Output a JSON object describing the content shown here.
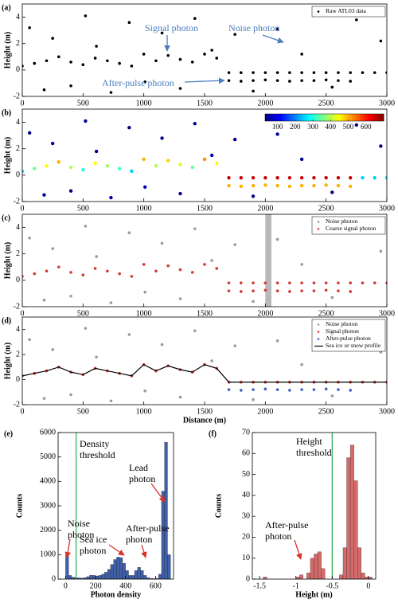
{
  "chart_data": [
    {
      "type": "scatter",
      "label": "(a)",
      "y_label": "Height (m)",
      "xlim": [
        0,
        3000
      ],
      "ylim": [
        -2,
        5
      ],
      "xticks": [
        0,
        500,
        1000,
        1500,
        2000,
        2500,
        3000
      ],
      "yticks": [
        -2,
        0,
        2,
        4
      ],
      "legend": "upper right",
      "series": [
        {
          "name": "Raw ATL03 data",
          "color": "#000000",
          "x": [
            0,
            100,
            200,
            300,
            400,
            500,
            600,
            700,
            800,
            900,
            1000,
            1100,
            1200,
            1300,
            1400,
            1500,
            1600,
            1700,
            1800,
            1900,
            2000,
            2100,
            2200,
            2300,
            2400,
            2500,
            2600,
            2700,
            2800,
            2900,
            3000,
            60,
            180,
            250,
            400,
            520,
            610,
            730,
            880,
            1010,
            1150,
            1300,
            1420,
            1560,
            1750,
            1900,
            2100,
            2300,
            2550,
            2750,
            2950,
            1700,
            1800,
            1900,
            2000,
            2100,
            2200,
            2300,
            2400,
            2500,
            2600,
            2700
          ],
          "values": [
            0.3,
            0.5,
            0.7,
            1,
            0.6,
            0.4,
            0.9,
            0.7,
            0.5,
            0.3,
            1.2,
            0.7,
            1.1,
            0.8,
            0.6,
            1.2,
            0.9,
            -0.2,
            -0.2,
            -0.2,
            -0.2,
            -0.2,
            -0.2,
            -0.2,
            -0.2,
            -0.2,
            -0.2,
            -0.2,
            -0.2,
            -0.2,
            -0.2,
            3.2,
            -1.5,
            2.4,
            -1.2,
            4.1,
            1.8,
            -1.7,
            3.6,
            -0.9,
            2.8,
            -1.4,
            3.9,
            1.5,
            2.7,
            -1.6,
            3.1,
            1.2,
            -1.3,
            3.8,
            2.2,
            -0.8,
            -0.85,
            -0.8,
            -0.75,
            -0.8,
            -0.85,
            -0.8,
            -0.8,
            -0.75,
            -0.8,
            -0.85
          ]
        }
      ],
      "annotations": [
        "Signal photon",
        "Noise photon",
        "After-pulse photon"
      ],
      "annotation_color": "#4a7cc0"
    },
    {
      "type": "density-scatter",
      "label": "(b)",
      "y_label": "Height (m)",
      "xlim": [
        0,
        3000
      ],
      "ylim": [
        -2,
        5
      ],
      "xticks": [
        0,
        500,
        1000,
        1500,
        2000,
        2500,
        3000
      ],
      "yticks": [
        -2,
        0,
        2,
        4
      ],
      "x": [
        0,
        100,
        200,
        300,
        400,
        500,
        600,
        700,
        800,
        900,
        1000,
        1100,
        1200,
        1300,
        1400,
        1500,
        1600,
        1700,
        1800,
        1900,
        2000,
        2100,
        2200,
        2300,
        2400,
        2500,
        2600,
        2700,
        2800,
        2900,
        3000,
        60,
        180,
        250,
        400,
        520,
        610,
        730,
        880,
        1010,
        1150,
        1300,
        1420,
        1560,
        1750,
        1900,
        2100,
        2300,
        2550,
        2750,
        2950,
        1700,
        1800,
        1900,
        2000,
        2100,
        2200,
        2300,
        2400,
        2500,
        2600,
        2700
      ],
      "values": [
        0.3,
        0.5,
        0.7,
        1,
        0.6,
        0.4,
        0.9,
        0.7,
        0.5,
        0.3,
        1.2,
        0.7,
        1.1,
        0.8,
        0.6,
        1.2,
        0.9,
        -0.2,
        -0.2,
        -0.2,
        -0.2,
        -0.2,
        -0.2,
        -0.2,
        -0.2,
        -0.2,
        -0.2,
        -0.2,
        -0.2,
        -0.2,
        -0.2,
        3.2,
        -1.5,
        2.4,
        -1.2,
        4.1,
        1.8,
        -1.7,
        3.6,
        -0.9,
        2.8,
        -1.4,
        3.9,
        1.5,
        2.7,
        -1.6,
        3.1,
        1.2,
        -1.3,
        3.8,
        2.2,
        -0.8,
        -0.85,
        -0.8,
        -0.75,
        -0.8,
        -0.85,
        -0.8,
        -0.8,
        -0.75,
        -0.8,
        -0.85
      ],
      "density": [
        250,
        350,
        450,
        500,
        400,
        300,
        450,
        380,
        320,
        250,
        500,
        400,
        480,
        420,
        350,
        520,
        450,
        650,
        650,
        650,
        650,
        650,
        650,
        650,
        650,
        650,
        650,
        650,
        250,
        250,
        250,
        30,
        45,
        60,
        35,
        50,
        40,
        55,
        30,
        70,
        45,
        35,
        50,
        60,
        40,
        30,
        55,
        45,
        35,
        50,
        40,
        500,
        500,
        500,
        500,
        500,
        500,
        500,
        500,
        500,
        500,
        500
      ],
      "clim": [
        30,
        700
      ],
      "colorbar_ticks": [
        100,
        200,
        300,
        400,
        500,
        600
      ],
      "colormap": "jet"
    },
    {
      "type": "scatter",
      "label": "(c)",
      "y_label": "Height (m)",
      "xlim": [
        0,
        3000
      ],
      "ylim": [
        -2,
        5
      ],
      "xticks": [
        0,
        500,
        1000,
        1500,
        2000,
        2500,
        3000
      ],
      "yticks": [
        -2,
        0,
        2,
        4
      ],
      "legend": "upper right",
      "highlight": [
        2000,
        2050
      ],
      "highlight_color": "#b8b8b8",
      "series": [
        {
          "name": "Noise photon",
          "color": "#9a9a9a",
          "x": [
            60,
            180,
            250,
            400,
            520,
            610,
            730,
            880,
            1010,
            1150,
            1300,
            1420,
            1560,
            1750,
            1900,
            2100,
            2300,
            2550,
            2750,
            2950
          ],
          "values": [
            3.2,
            -1.5,
            2.4,
            -1.2,
            4.1,
            1.8,
            -1.7,
            3.6,
            -0.9,
            2.8,
            -1.4,
            3.9,
            1.5,
            2.7,
            -1.6,
            3.1,
            1.2,
            -1.3,
            3.8,
            2.2
          ]
        },
        {
          "name": "Coarse signal photon",
          "color": "#d03a32",
          "x": [
            0,
            100,
            200,
            300,
            400,
            500,
            600,
            700,
            800,
            900,
            1000,
            1100,
            1200,
            1300,
            1400,
            1500,
            1600,
            1700,
            1800,
            1900,
            2000,
            2100,
            2200,
            2300,
            2400,
            2500,
            2600,
            2700,
            2800,
            2900,
            3000,
            1700,
            1800,
            1900,
            2000,
            2100,
            2200,
            2300,
            2400,
            2500,
            2600,
            2700
          ],
          "values": [
            0.3,
            0.5,
            0.7,
            1,
            0.6,
            0.4,
            0.9,
            0.7,
            0.5,
            0.3,
            1.2,
            0.7,
            1.1,
            0.8,
            0.6,
            1.2,
            0.9,
            -0.2,
            -0.2,
            -0.2,
            -0.2,
            -0.2,
            -0.2,
            -0.2,
            -0.2,
            -0.2,
            -0.2,
            -0.2,
            -0.2,
            -0.2,
            -0.2,
            -0.8,
            -0.85,
            -0.8,
            -0.75,
            -0.8,
            -0.85,
            -0.8,
            -0.8,
            -0.75,
            -0.8,
            -0.85
          ]
        }
      ]
    },
    {
      "type": "scatter",
      "label": "(d)",
      "y_label": "Height (m)",
      "x_label": "Distance (m)",
      "xlim": [
        0,
        3000
      ],
      "ylim": [
        -2,
        5
      ],
      "xticks": [
        0,
        500,
        1000,
        1500,
        2000,
        2500,
        3000
      ],
      "yticks": [
        -2,
        0,
        2,
        4
      ],
      "legend": "upper right",
      "series": [
        {
          "name": "Noise photon",
          "color": "#9a9a9a",
          "x": [
            60,
            180,
            250,
            400,
            520,
            610,
            730,
            880,
            1010,
            1150,
            1300,
            1420,
            1560,
            1750,
            1900,
            2100,
            2300,
            2550,
            2750,
            2950
          ],
          "values": [
            3.2,
            -1.5,
            2.4,
            -1.2,
            4.1,
            1.8,
            -1.7,
            3.6,
            -0.9,
            2.8,
            -1.4,
            3.9,
            1.5,
            2.7,
            -1.6,
            3.1,
            1.2,
            -1.3,
            3.8,
            2.2
          ]
        },
        {
          "name": "Signal photon",
          "color": "#d03a32",
          "x": [
            0,
            100,
            200,
            300,
            400,
            500,
            600,
            700,
            800,
            900,
            1000,
            1100,
            1200,
            1300,
            1400,
            1500,
            1600,
            1700,
            1800,
            1900,
            2000,
            2100,
            2200,
            2300,
            2400,
            2500,
            2600,
            2700,
            2800,
            2900,
            3000
          ],
          "values": [
            0.3,
            0.5,
            0.7,
            1,
            0.6,
            0.4,
            0.9,
            0.7,
            0.5,
            0.3,
            1.2,
            0.7,
            1.1,
            0.8,
            0.6,
            1.2,
            0.9,
            -0.2,
            -0.2,
            -0.2,
            -0.2,
            -0.2,
            -0.2,
            -0.2,
            -0.2,
            -0.2,
            -0.2,
            -0.2,
            -0.2,
            -0.2,
            -0.2
          ]
        },
        {
          "name": "After-pulse photon",
          "color": "#3b63c4",
          "x": [
            1700,
            1800,
            1900,
            2000,
            2100,
            2200,
            2300,
            2400,
            2500,
            2600,
            2700
          ],
          "values": [
            -0.8,
            -0.85,
            -0.8,
            -0.75,
            -0.8,
            -0.85,
            -0.8,
            -0.8,
            -0.75,
            -0.8,
            -0.85
          ]
        },
        {
          "name": "Sea ice or snow profile",
          "color": "#000000",
          "style": "line",
          "x": [
            0,
            100,
            200,
            300,
            400,
            500,
            600,
            700,
            800,
            900,
            1000,
            1100,
            1200,
            1300,
            1400,
            1500,
            1600,
            1700,
            1800,
            1900,
            2000,
            2100,
            2200,
            2300,
            2400,
            2500,
            2600,
            2700,
            2800,
            2900,
            3000
          ],
          "values": [
            0.3,
            0.5,
            0.7,
            1,
            0.6,
            0.4,
            0.9,
            0.7,
            0.5,
            0.3,
            1.2,
            0.7,
            1.1,
            0.8,
            0.6,
            1.2,
            0.9,
            -0.2,
            -0.2,
            -0.2,
            -0.2,
            -0.2,
            -0.2,
            -0.2,
            -0.2,
            -0.2,
            -0.2,
            -0.2,
            -0.2,
            -0.2,
            -0.2
          ]
        }
      ]
    },
    {
      "type": "histogram",
      "label": "(e)",
      "y_label": "Counts",
      "x_label": "Photon density",
      "xlim": [
        -50,
        720
      ],
      "ylim": [
        0,
        6000
      ],
      "xticks": [
        0,
        200,
        400,
        600
      ],
      "yticks": [
        0,
        1000,
        2000,
        3000,
        4000,
        5000,
        6000
      ],
      "color": "#3f5fa8",
      "threshold": 70,
      "threshold_color": "#22b14c",
      "bins": [
        0,
        20,
        40,
        60,
        80,
        100,
        120,
        140,
        160,
        180,
        200,
        220,
        240,
        260,
        280,
        300,
        320,
        340,
        360,
        380,
        400,
        420,
        440,
        460,
        480,
        500,
        520,
        540,
        560,
        580,
        600,
        620,
        640,
        660,
        680,
        700
      ],
      "values": [
        1000,
        150,
        80,
        60,
        50,
        40,
        60,
        100,
        160,
        150,
        130,
        150,
        200,
        280,
        400,
        600,
        800,
        900,
        880,
        650,
        350,
        150,
        150,
        350,
        480,
        350,
        150,
        60,
        30,
        20,
        30,
        200,
        3600,
        5600,
        1000
      ],
      "annotations": [
        [
          "Density",
          "threshold"
        ],
        [
          "Lead",
          "photon"
        ],
        [
          "Noise",
          "photon"
        ],
        [
          "Sea ice",
          "photon"
        ],
        [
          "After-pulse",
          "photon"
        ]
      ]
    },
    {
      "type": "histogram",
      "label": "(f)",
      "y_label": "Counts",
      "x_label": "Height (m)",
      "xlim": [
        -1.6,
        0.1
      ],
      "ylim": [
        0,
        70
      ],
      "xticks": [
        -1.5,
        -1,
        -0.5,
        0
      ],
      "yticks": [
        0,
        10,
        20,
        30,
        40,
        50,
        60,
        70
      ],
      "color": "#d46a6a",
      "threshold": -0.5,
      "threshold_color": "#22b14c",
      "bins": [
        -1.5,
        -1.45,
        -1.4,
        -1.35,
        -1.3,
        -1.25,
        -1.2,
        -1.15,
        -1.1,
        -1.05,
        -1,
        -0.95,
        -0.9,
        -0.85,
        -0.8,
        -0.75,
        -0.7,
        -0.65,
        -0.6,
        -0.55,
        -0.5,
        -0.45,
        -0.4,
        -0.35,
        -0.3,
        -0.25,
        -0.2,
        -0.15,
        -0.1,
        -0.05,
        0,
        0.05
      ],
      "values": [
        0,
        1,
        0,
        0,
        0,
        0,
        0,
        0,
        0,
        0,
        1,
        2,
        0,
        3,
        10,
        12,
        13,
        5,
        0,
        0,
        0,
        0,
        2,
        15,
        58,
        64,
        47,
        15,
        3,
        1,
        1
      ],
      "annotations": [
        [
          "Height",
          "threshold"
        ],
        [
          "After-pulse",
          "photon"
        ]
      ]
    }
  ]
}
